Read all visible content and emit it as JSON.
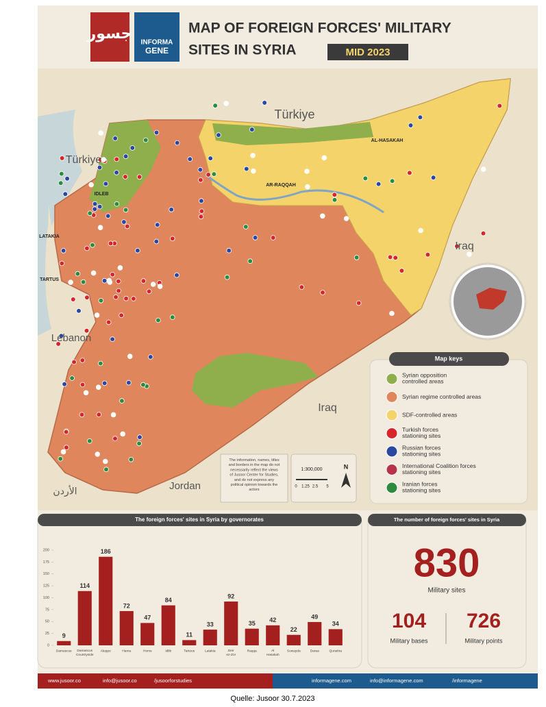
{
  "header": {
    "logo_jusoor": "جسور",
    "logo_informa": "INFORMA",
    "logo_gene": "GENE",
    "title_line1": "MAP OF FOREIGN FORCES' MILITARY",
    "title_line2": "SITES IN SYRIA",
    "badge": "MID 2023"
  },
  "map": {
    "countries": [
      "Türkiye",
      "Türkiye",
      "Iraq",
      "Iraq",
      "Lebanon",
      "Jordan",
      "الأردن"
    ],
    "cities": [
      "AR-RAQQAH",
      "AL-HASAKAH",
      "LATAKIA",
      "TARTUS",
      "IDLEB"
    ],
    "disclaimer": "The information, names, titles and borders in the map do not necessarily reflect the views of Jusoor Center for Studies, and do not express any political opinion towards the actors",
    "scale": {
      "ratio": "1:300,000",
      "ticks": [
        "0",
        "1.25",
        "2.5",
        "5"
      ],
      "north": "N"
    }
  },
  "legend": {
    "title": "Map keys",
    "items": [
      {
        "label": "Syrian opposition controlled areas",
        "color": "#8fae4c"
      },
      {
        "label": "Syrian regime controlled areas",
        "color": "#e0865c"
      },
      {
        "label": "SDF-controlled areas",
        "color": "#f4d36b"
      },
      {
        "label": "Turkish forces stationing sites",
        "color": "#d7262b"
      },
      {
        "label": "Russian forces stationing sites",
        "color": "#2c47a0"
      },
      {
        "label": "International Coalition forces stationing sites",
        "color": "#b8334a"
      },
      {
        "label": "Iranian forces stationing sites",
        "color": "#2d8a3e"
      }
    ]
  },
  "chart_data": {
    "type": "bar",
    "title": "The foreign forces' sites in Syria by governorates",
    "categories": [
      "Damascus",
      "Damascus Countryside",
      "Aleppo",
      "Hama",
      "Homs",
      "Idlib",
      "Tartous",
      "Latakia",
      "Deir ez-Zor",
      "Raqqa",
      "Al Hasakah",
      "Suwayda",
      "Daraa",
      "Quneitra"
    ],
    "values": [
      9,
      114,
      186,
      72,
      47,
      84,
      11,
      33,
      92,
      35,
      42,
      22,
      49,
      34
    ],
    "color": "#a3201f",
    "ylim": [
      0,
      200
    ],
    "yticks": [
      0,
      25,
      50,
      75,
      100,
      125,
      150,
      175,
      200
    ],
    "grid": false
  },
  "stats": {
    "title": "The number of foreign forces' sites in Syria",
    "total": 830,
    "total_label": "Military sites",
    "bases": 104,
    "bases_label": "Military bases",
    "points": 726,
    "points_label": "Military points"
  },
  "footer": {
    "left": [
      "www.jusoor.co",
      "info@jusoor.co",
      "/jusoorforstudies"
    ],
    "right": [
      "informagene.com",
      "info@informagene.com",
      "/informagene"
    ]
  },
  "caption": "Quelle: Jusoor 30.7.2023"
}
